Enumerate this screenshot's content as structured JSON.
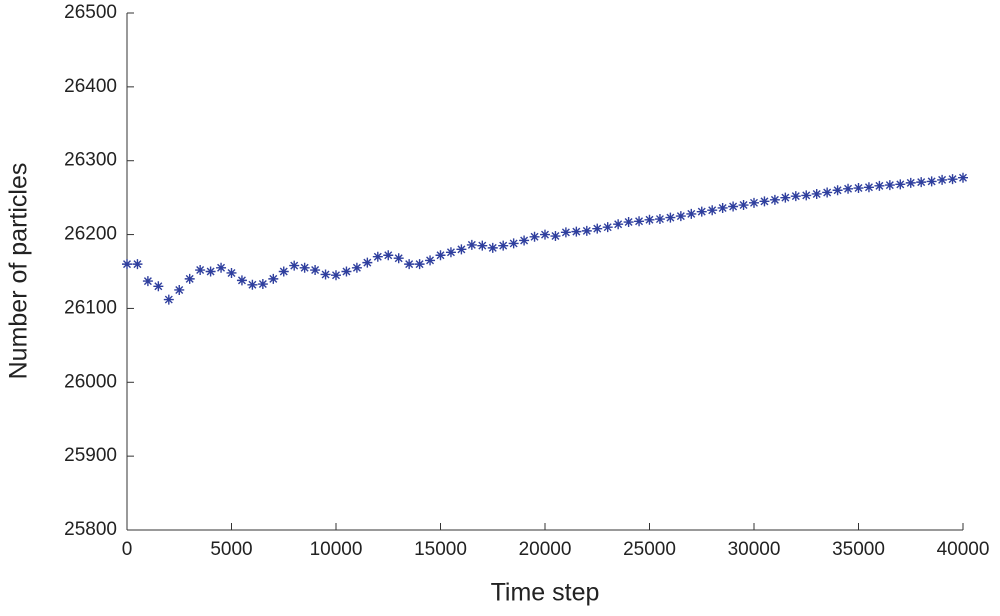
{
  "chart_data": {
    "type": "scatter",
    "x_label": "Time step",
    "y_label": "Number of particles",
    "x": [
      0,
      500,
      1000,
      1500,
      2000,
      2500,
      3000,
      3500,
      4000,
      4500,
      5000,
      5500,
      6000,
      6500,
      7000,
      7500,
      8000,
      8500,
      9000,
      9500,
      10000,
      10500,
      11000,
      11500,
      12000,
      12500,
      13000,
      13500,
      14000,
      14500,
      15000,
      15500,
      16000,
      16500,
      17000,
      17500,
      18000,
      18500,
      19000,
      19500,
      20000,
      20500,
      21000,
      21500,
      22000,
      22500,
      23000,
      23500,
      24000,
      24500,
      25000,
      25500,
      26000,
      26500,
      27000,
      27500,
      28000,
      28500,
      29000,
      29500,
      30000,
      30500,
      31000,
      31500,
      32000,
      32500,
      33000,
      33500,
      34000,
      34500,
      35000,
      35500,
      36000,
      36500,
      37000,
      37500,
      38000,
      38500,
      39000,
      39500,
      40000
    ],
    "values": [
      26160,
      26160,
      26137,
      26130,
      26112,
      26125,
      26140,
      26152,
      26150,
      26155,
      26148,
      26138,
      26132,
      26133,
      26140,
      26150,
      26158,
      26155,
      26152,
      26146,
      26145,
      26150,
      26155,
      26162,
      26170,
      26172,
      26168,
      26160,
      26160,
      26165,
      26172,
      26176,
      26180,
      26186,
      26185,
      26182,
      26185,
      26188,
      26192,
      26197,
      26200,
      26198,
      26203,
      26204,
      26205,
      26208,
      26210,
      26214,
      26217,
      26218,
      26220,
      26221,
      26223,
      26225,
      26228,
      26231,
      26233,
      26236,
      26238,
      26240,
      26243,
      26245,
      26247,
      26250,
      26252,
      26253,
      26255,
      26257,
      26260,
      26262,
      26263,
      26264,
      26266,
      26267,
      26268,
      26270,
      26271,
      26272,
      26274,
      26275,
      26277
    ],
    "color": "#2f3f9e",
    "xlim": [
      0,
      40000
    ],
    "xticks": [
      0,
      5000,
      10000,
      15000,
      20000,
      25000,
      30000,
      35000,
      40000
    ],
    "ylim": [
      25800,
      26500
    ],
    "yticks": [
      25800,
      25900,
      26000,
      26100,
      26200,
      26300,
      26400,
      26500
    ]
  }
}
